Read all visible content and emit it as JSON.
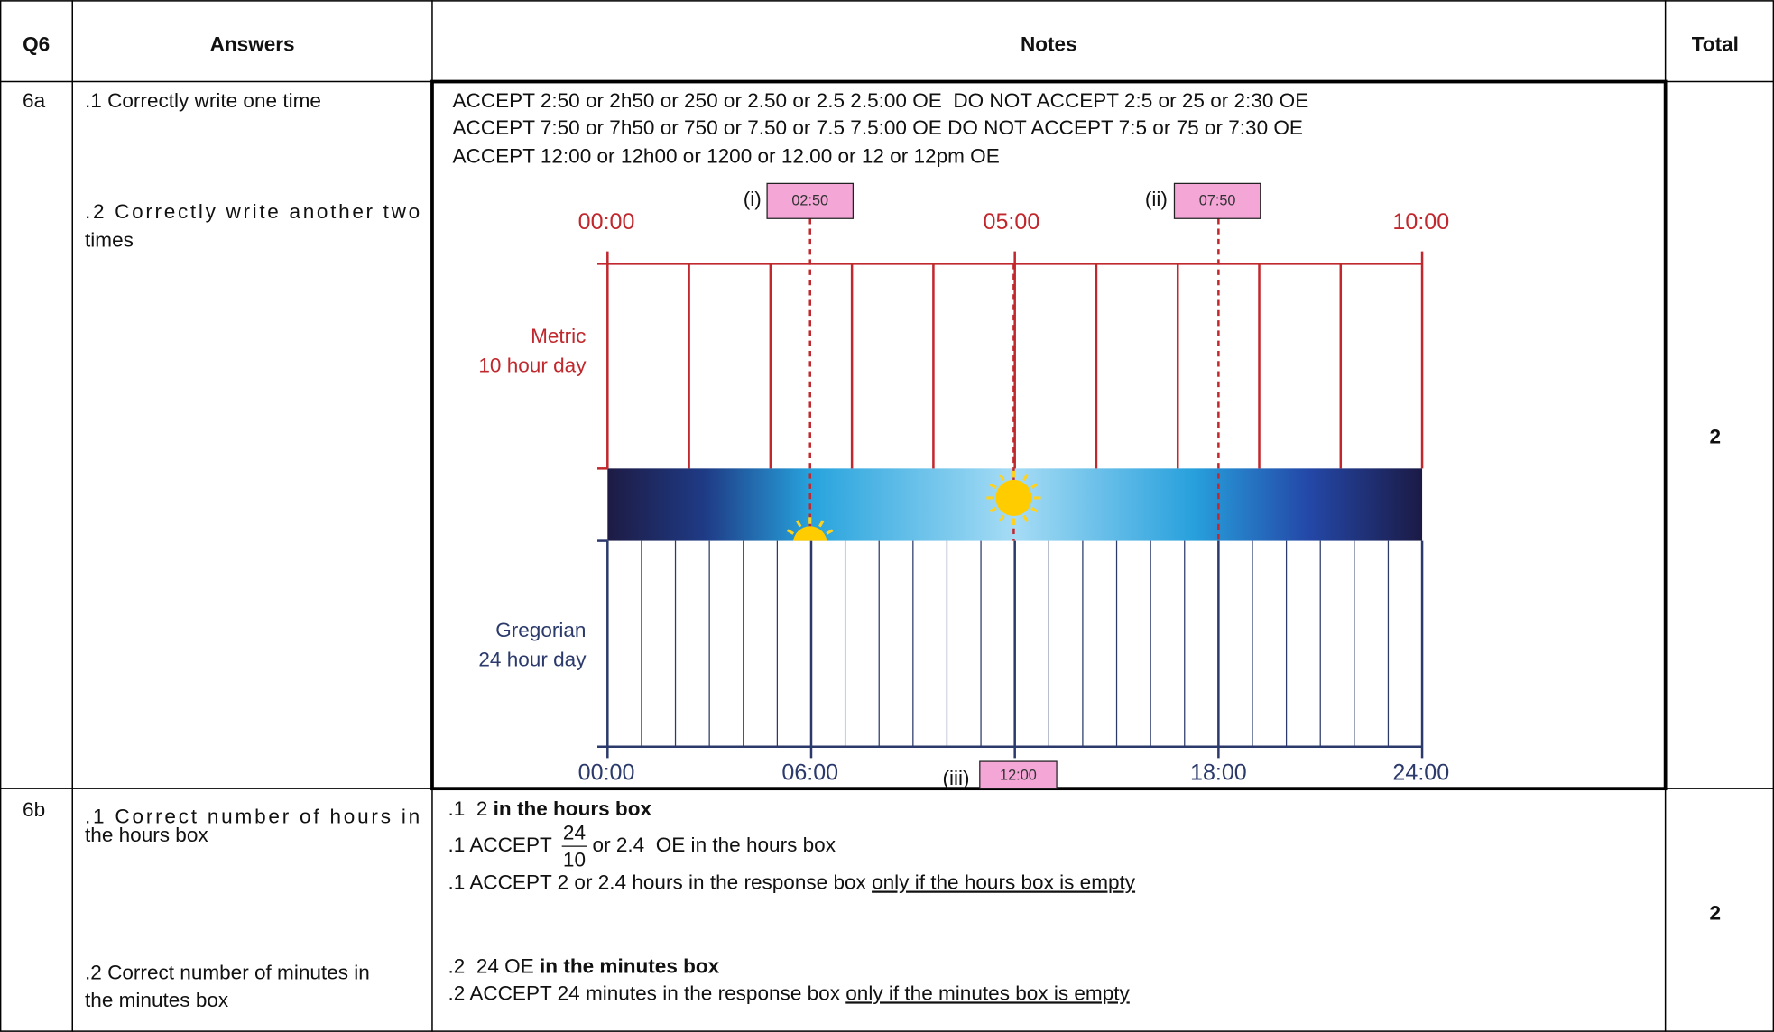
{
  "header": {
    "q": "Q6",
    "answers": "Answers",
    "notes": "Notes",
    "total": "Total"
  },
  "rows": [
    {
      "q": "6a",
      "answers": [
        ".1 Correctly write one time",
        ".2 Correctly write another two",
        "times"
      ],
      "notes": [
        "ACCEPT 2:50 or 2h50 or 250 or 2.50 or 2.5 2.5:00 OE  DO NOT ACCEPT 2:5 or 25 or 2:30 OE",
        "ACCEPT 7:50 or 7h50 or 750 or 7.50 or 7.5 7.5:00 OE DO NOT ACCEPT 7:5 or 75 or 7:30 OE",
        "ACCEPT 12:00 or 12h00 or 1200 or 12.00 or 12 or 12pm OE"
      ],
      "diagram": {
        "metric_label": [
          "Metric",
          "10 hour day"
        ],
        "gregorian_label": [
          "Gregorian",
          "24 hour day"
        ],
        "metric_ticks": [
          "00:00",
          "05:00",
          "10:00"
        ],
        "gregorian_ticks": [
          "00:00",
          "06:00",
          "18:00",
          "24:00"
        ],
        "markers": [
          {
            "label": "(i)",
            "time": "02:50"
          },
          {
            "label": "(ii)",
            "time": "07:50"
          },
          {
            "label": "(iii)",
            "time": "12:00"
          }
        ]
      },
      "total": "2"
    },
    {
      "q": "6b",
      "answers": [
        ".1 Correct number of hours in",
        "the hours box",
        ".2 Correct number of minutes in",
        "the minutes box"
      ],
      "notes": [
        {
          "text": ".1  2 ",
          "bold": "in the hours box"
        },
        {
          "text": ".1 ACCEPT ",
          "numerator": "24",
          "denominator": "10",
          "suffix": " or 2.4  OE in the hours box"
        },
        {
          "text": ".1 ACCEPT 2 or 2.4 hours in the response box ",
          "underlined": "only if the hours box is empty"
        },
        {
          "text": ".2  24 OE ",
          "bold": "in the minutes box"
        },
        {
          "text": ".2 ACCEPT 24 minutes in the response box ",
          "underlined": "only if the minutes box is empty"
        }
      ],
      "total": "2"
    }
  ]
}
